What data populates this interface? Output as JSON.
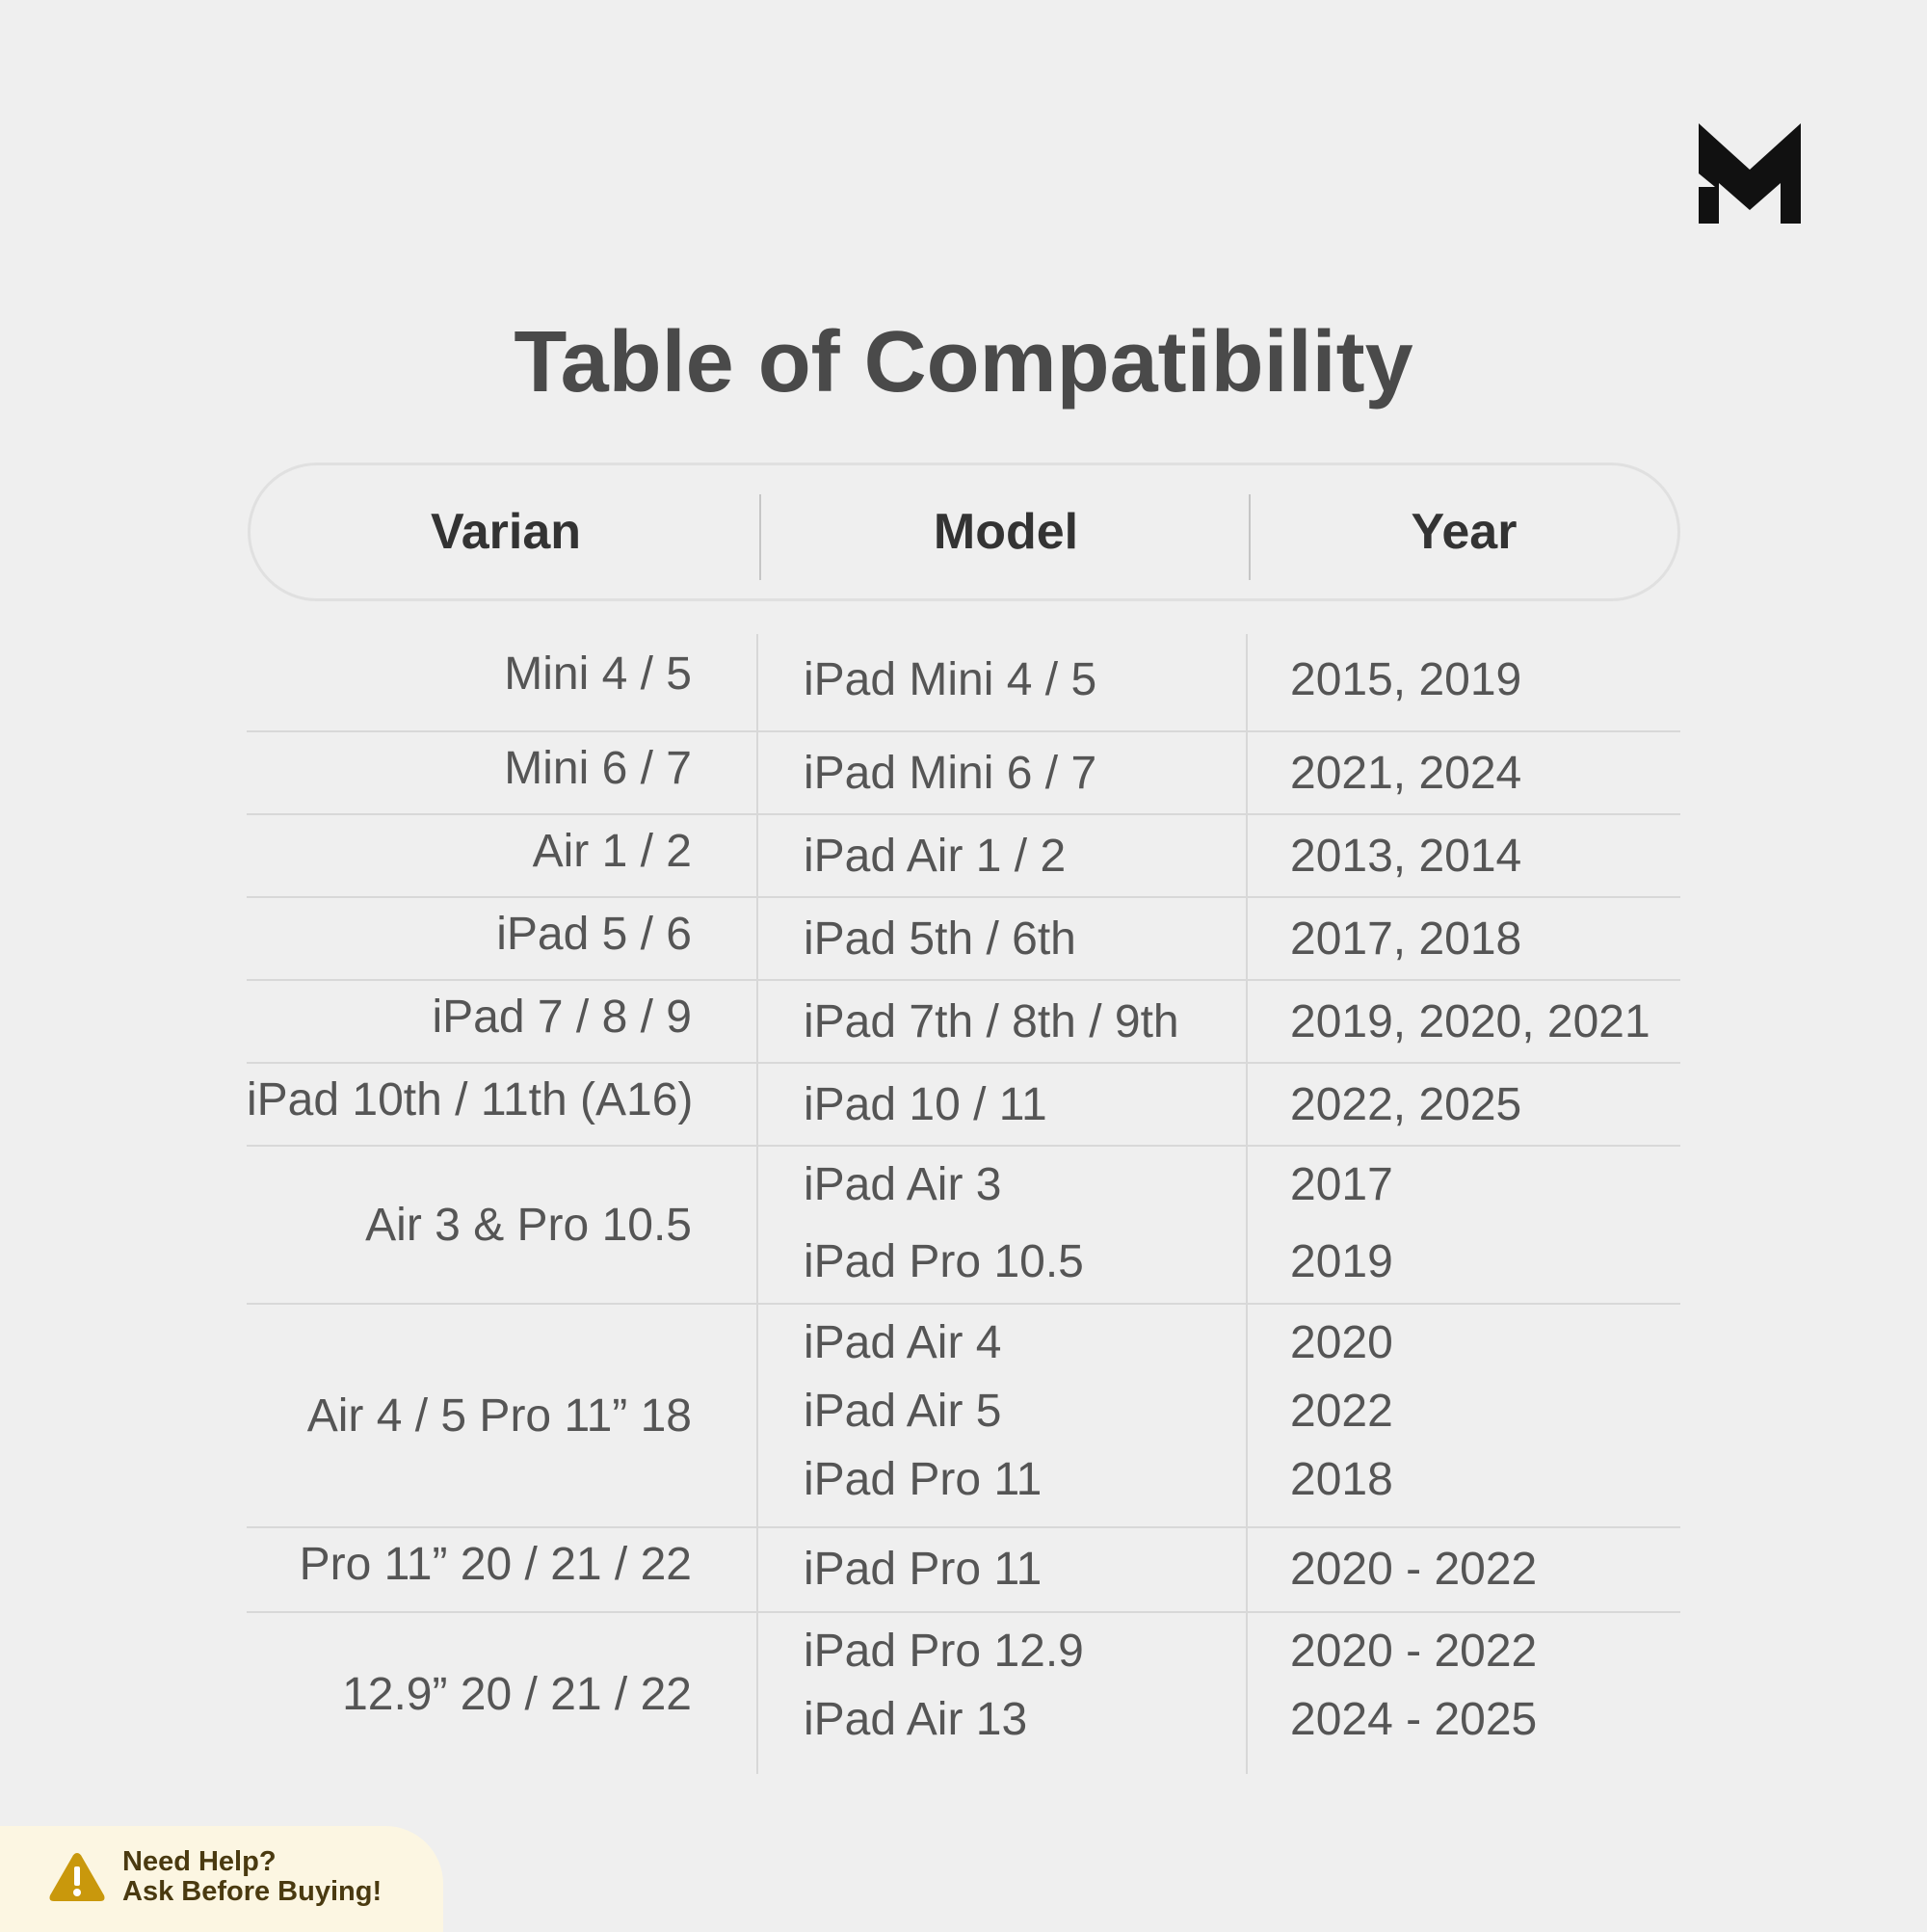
{
  "brand": {
    "logo": "M",
    "logo_color": "#111111"
  },
  "title": "Table of Compatibility",
  "columns": [
    "Varian",
    "Model",
    "Year"
  ],
  "rows": [
    {
      "varian": "Mini 4 / 5",
      "models": [
        "iPad Mini 4 / 5"
      ],
      "years": [
        "2015, 2019"
      ]
    },
    {
      "varian": "Mini 6 / 7",
      "models": [
        "iPad Mini 6 / 7"
      ],
      "years": [
        "2021, 2024"
      ]
    },
    {
      "varian": "Air 1 / 2",
      "models": [
        "iPad Air 1 / 2"
      ],
      "years": [
        "2013, 2014"
      ]
    },
    {
      "varian": "iPad 5 / 6",
      "models": [
        "iPad 5th / 6th"
      ],
      "years": [
        "2017, 2018"
      ]
    },
    {
      "varian": "iPad 7 / 8 / 9",
      "models": [
        "iPad 7th / 8th / 9th"
      ],
      "years": [
        "2019, 2020, 2021"
      ]
    },
    {
      "varian": "iPad 10th / 11th (A16)",
      "models": [
        "iPad 10 / 11"
      ],
      "years": [
        "2022, 2025"
      ]
    },
    {
      "varian": "Air 3 & Pro 10.5",
      "models": [
        "iPad Air 3",
        "iPad Pro 10.5"
      ],
      "years": [
        "2017",
        "2019"
      ]
    },
    {
      "varian": "Air 4 / 5 Pro 11” 18",
      "models": [
        "iPad Air 4",
        "iPad Air 5",
        "iPad Pro 11"
      ],
      "years": [
        "2020",
        "2022",
        "2018"
      ]
    },
    {
      "varian": "Pro 11”  20 / 21 / 22",
      "models": [
        "iPad Pro 11"
      ],
      "years": [
        "2020 - 2022"
      ]
    },
    {
      "varian": "12.9”  20 / 21 / 22",
      "models": [
        "iPad Pro 12.9",
        "iPad Air 13"
      ],
      "years": [
        "2020 - 2022",
        "2024 - 2025"
      ]
    }
  ],
  "help": {
    "line1": "Need Help?",
    "line2": "Ask Before Buying!",
    "icon": "warning-icon",
    "icon_color": "#c9980c"
  }
}
